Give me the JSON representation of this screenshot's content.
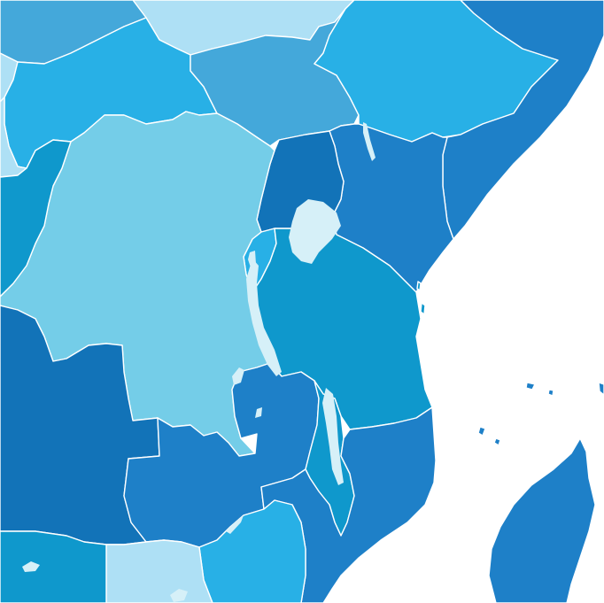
{
  "map": {
    "colors": {
      "ocean": "#ffffff",
      "border": "#ffffff",
      "lake": "#d6f0f8",
      "darkest": "#1273b8",
      "dark": "#1e80c8",
      "medium_dark": "#0f98cc",
      "medium": "#28b0e6",
      "steel": "#44a8da",
      "light": "#74cde8",
      "pale": "#aee0f5"
    },
    "regions": [
      {
        "name": "sudan-area",
        "color_key": "pale"
      },
      {
        "name": "chad-area",
        "color_key": "steel"
      },
      {
        "name": "central-african-republic",
        "color_key": "medium"
      },
      {
        "name": "south-sudan",
        "color_key": "steel"
      },
      {
        "name": "ethiopia",
        "color_key": "medium"
      },
      {
        "name": "somalia",
        "color_key": "dark"
      },
      {
        "name": "kenya",
        "color_key": "dark"
      },
      {
        "name": "uganda",
        "color_key": "darkest"
      },
      {
        "name": "rwanda-burundi",
        "color_key": "medium"
      },
      {
        "name": "tanzania",
        "color_key": "medium_dark"
      },
      {
        "name": "democratic-republic-of-the-congo",
        "color_key": "light"
      },
      {
        "name": "republic-of-the-congo",
        "color_key": "medium_dark"
      },
      {
        "name": "angola",
        "color_key": "darkest"
      },
      {
        "name": "zambia",
        "color_key": "dark"
      },
      {
        "name": "malawi",
        "color_key": "medium_dark"
      },
      {
        "name": "mozambique",
        "color_key": "dark"
      },
      {
        "name": "zimbabwe",
        "color_key": "medium"
      },
      {
        "name": "botswana",
        "color_key": "pale"
      },
      {
        "name": "namibia",
        "color_key": "medium_dark"
      },
      {
        "name": "madagascar",
        "color_key": "dark"
      }
    ]
  }
}
